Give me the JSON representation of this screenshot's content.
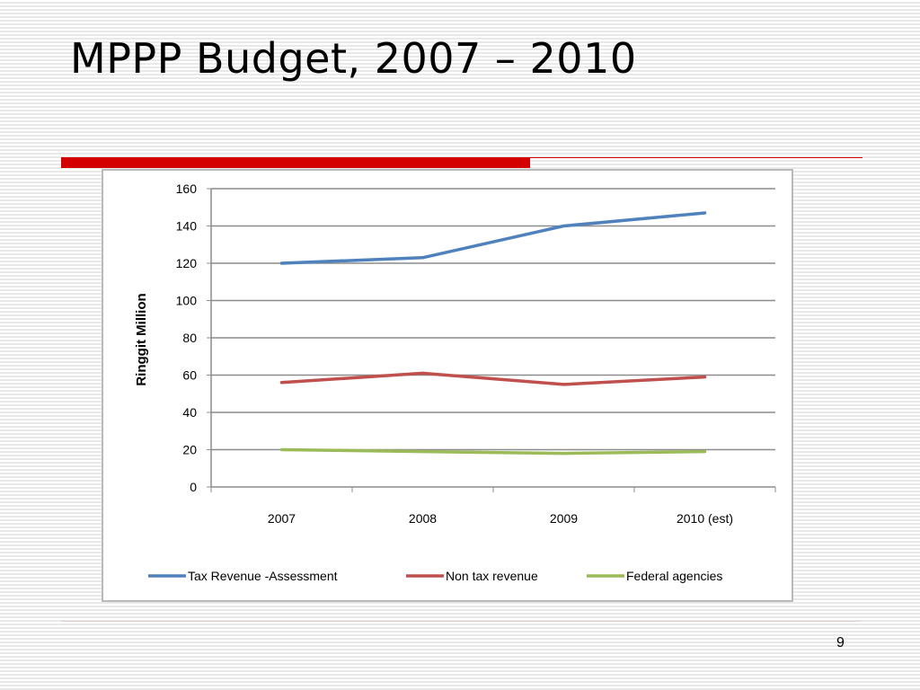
{
  "slide": {
    "title": "MPPP Budget, 2007 – 2010",
    "page_number": "9",
    "accent_color": "#d40000"
  },
  "chart_data": {
    "type": "line",
    "title": "",
    "xlabel": "",
    "ylabel": "Ringgit Million",
    "ylim": [
      0,
      160
    ],
    "yticks": [
      0,
      20,
      40,
      60,
      80,
      100,
      120,
      140,
      160
    ],
    "categories": [
      "2007",
      "2008",
      "2009",
      "2010 (est)"
    ],
    "grid": true,
    "legend_position": "bottom",
    "series": [
      {
        "name": "Tax Revenue -Assessment",
        "color": "#4f81bd",
        "values": [
          120,
          123,
          140,
          147
        ]
      },
      {
        "name": "Non tax revenue",
        "color": "#c0504d",
        "values": [
          56,
          61,
          55,
          59
        ]
      },
      {
        "name": "Federal agencies",
        "color": "#9bbb59",
        "values": [
          20,
          19,
          18,
          19
        ]
      }
    ]
  }
}
